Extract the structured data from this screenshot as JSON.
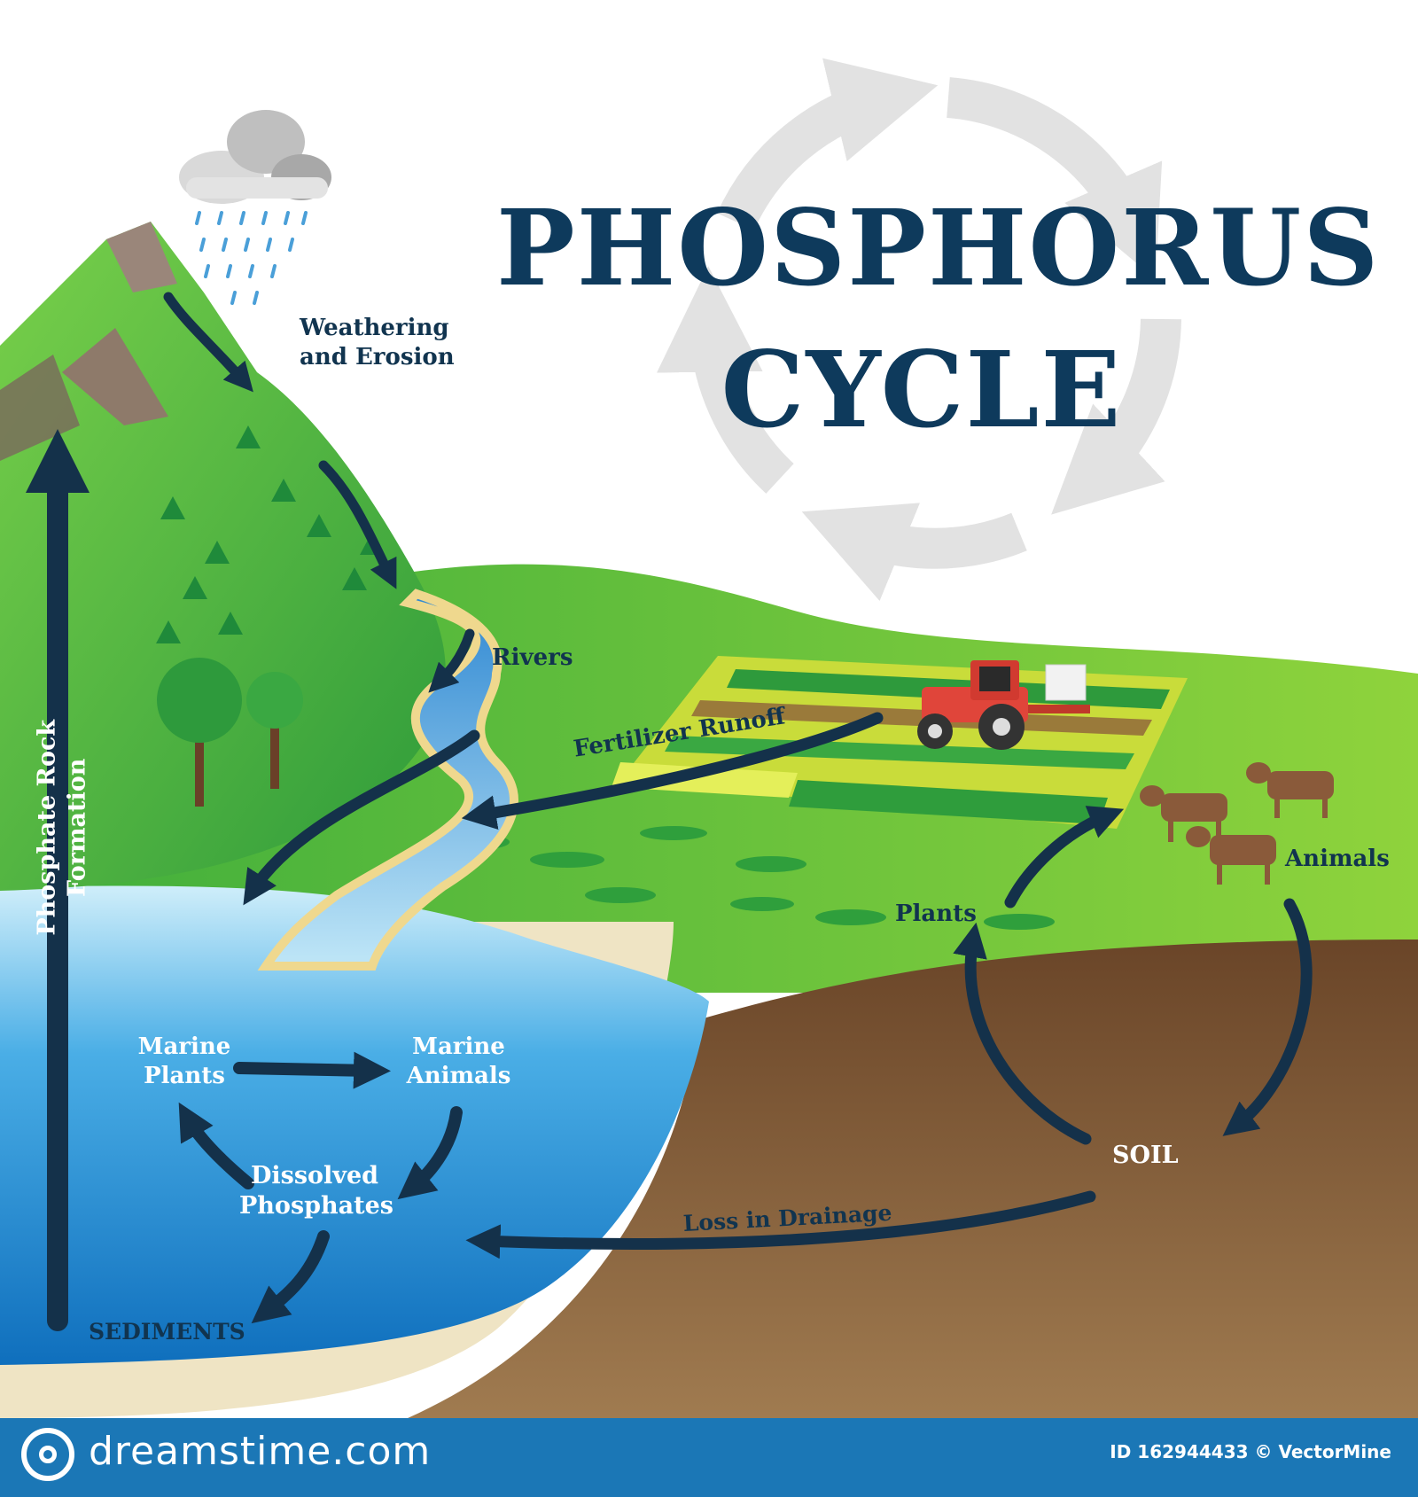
{
  "title": {
    "line1": "PHOSPHORUS",
    "line2": "CYCLE"
  },
  "labels": {
    "weathering": "Weathering and Erosion",
    "rivers": "Rivers",
    "fertilizer_runoff": "Fertilizer Runoff",
    "phosphate_rock_formation": "Phosphate Rock Formation",
    "plants": "Plants",
    "animals": "Animals",
    "marine_plants": "Marine Plants",
    "marine_animals": "Marine Animals",
    "dissolved_phosphates": "Dissolved Phosphates",
    "sediments": "SEDIMENTS",
    "soil": "SOIL",
    "loss_in_drainage": "Loss in Drainage"
  },
  "footer": {
    "brand": "dreamstime.com",
    "credit": "ID 162944433 © VectorMine"
  },
  "colors": {
    "title": "#0e3a5c",
    "arrow": "#14314a",
    "grass": "#5cc23a",
    "mountain": "#3ea83c",
    "water": "#2e8fd6",
    "soil": "#7b5636",
    "sediment": "#efe4c4",
    "footer": "#1b77b6"
  },
  "icons": [
    "cloud-icon",
    "rain-icon",
    "tractor-icon",
    "cow-icon",
    "tree-icon",
    "cycle-arrows-icon",
    "dreamstime-logo-icon"
  ]
}
